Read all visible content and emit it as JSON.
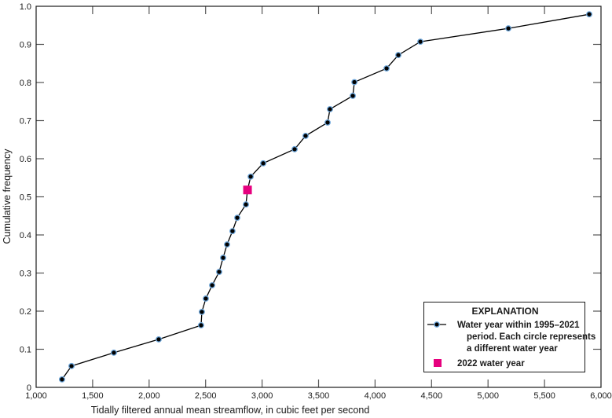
{
  "chart_data": {
    "type": "line",
    "title": "",
    "xlabel": "Tidally filtered annual mean streamflow, in cubic feet per second",
    "ylabel": "Cumulative frequency",
    "xlim": [
      1000,
      6000
    ],
    "ylim": [
      0,
      1.0
    ],
    "x_ticks": [
      1000,
      1500,
      2000,
      2500,
      3000,
      3500,
      4000,
      4500,
      5000,
      5500,
      6000
    ],
    "x_tick_labels": [
      "1,000",
      "1,500",
      "2,000",
      "2,500",
      "3,000",
      "3,500",
      "4,000",
      "4,500",
      "5,000",
      "5,500",
      "6,000"
    ],
    "y_ticks": [
      0,
      0.1,
      0.2,
      0.3,
      0.4,
      0.5,
      0.6,
      0.7,
      0.8,
      0.9,
      1.0
    ],
    "y_tick_labels": [
      "0",
      "0.1",
      "0.2",
      "0.3",
      "0.4",
      "0.5",
      "0.6",
      "0.7",
      "0.8",
      "0.9",
      "1.0"
    ],
    "grid": false,
    "legend_position": "lower right",
    "series": [
      {
        "name": "Water year within 1995–2021 period. Each circle represents a different water year",
        "type": "line+markers",
        "color": "#000000",
        "marker_edge_color": "#6fa8dc",
        "x": [
          1229,
          1313,
          1688,
          2085,
          2460,
          2467,
          2502,
          2558,
          2620,
          2655,
          2690,
          2738,
          2780,
          2857,
          2899,
          3010,
          3288,
          3385,
          3580,
          3601,
          3803,
          3817,
          4102,
          4206,
          4401,
          5180,
          5896
        ],
        "y": [
          0.021,
          0.056,
          0.091,
          0.126,
          0.163,
          0.198,
          0.233,
          0.268,
          0.303,
          0.34,
          0.375,
          0.41,
          0.445,
          0.48,
          0.553,
          0.588,
          0.625,
          0.66,
          0.695,
          0.73,
          0.765,
          0.801,
          0.837,
          0.872,
          0.907,
          0.942,
          0.979
        ]
      },
      {
        "name": "2022 water year",
        "type": "marker",
        "marker": "square",
        "color": "#e6007e",
        "x": [
          2871
        ],
        "y": [
          0.518
        ]
      }
    ]
  },
  "legend": {
    "title": "EXPLANATION",
    "item1_lines": [
      "Water year within 1995–2021",
      "period. Each circle represents",
      "a different water year"
    ],
    "item2_label": "2022 water year"
  }
}
